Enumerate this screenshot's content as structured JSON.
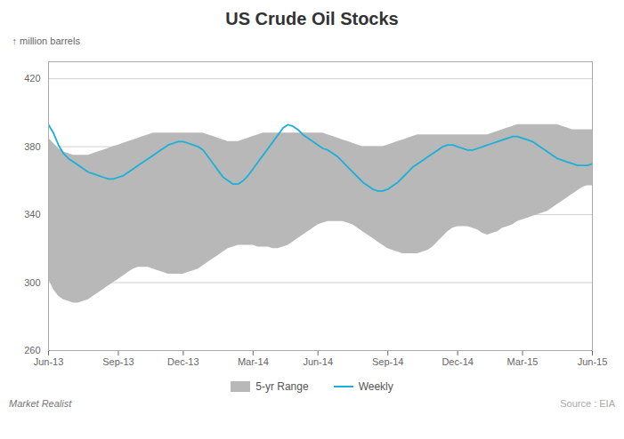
{
  "chart_data": {
    "type": "line",
    "title": "US Crude Oil Stocks",
    "y_label": "million barrels",
    "categories": [
      "Jun-13",
      null,
      null,
      null,
      null,
      null,
      null,
      null,
      null,
      null,
      null,
      null,
      null,
      null,
      "Sep-13",
      null,
      null,
      null,
      null,
      null,
      null,
      null,
      null,
      null,
      null,
      null,
      null,
      "Dec-13",
      null,
      null,
      null,
      null,
      null,
      null,
      null,
      null,
      null,
      null,
      null,
      null,
      null,
      "Mar-14",
      null,
      null,
      null,
      null,
      null,
      null,
      null,
      null,
      null,
      null,
      null,
      null,
      "Jun-14",
      null,
      null,
      null,
      null,
      null,
      null,
      null,
      null,
      null,
      null,
      null,
      null,
      null,
      "Sep-14",
      null,
      null,
      null,
      null,
      null,
      null,
      null,
      null,
      null,
      null,
      null,
      null,
      null,
      "Dec-14",
      null,
      null,
      null,
      null,
      null,
      null,
      null,
      null,
      null,
      null,
      null,
      null,
      "Mar-15",
      null,
      null,
      null,
      null,
      null,
      null,
      null,
      null,
      null,
      null,
      null,
      null,
      null,
      "Jun-15"
    ],
    "series": [
      {
        "name": "5-yr Range",
        "type": "area",
        "color": "#b8b8b8",
        "upper": [
          385,
          382,
          379,
          377,
          376,
          375,
          375,
          375,
          375,
          376,
          377,
          378,
          379,
          380,
          381,
          382,
          383,
          384,
          385,
          386,
          387,
          388,
          388,
          388,
          388,
          388,
          388,
          388,
          388,
          388,
          388,
          388,
          387,
          386,
          385,
          384,
          383,
          383,
          383,
          384,
          385,
          386,
          387,
          388,
          388,
          388,
          388,
          388,
          388,
          388,
          388,
          388,
          388,
          388,
          388,
          388,
          387,
          386,
          385,
          384,
          383,
          382,
          381,
          380,
          380,
          380,
          380,
          380,
          381,
          382,
          383,
          384,
          385,
          386,
          387,
          387,
          387,
          387,
          387,
          387,
          387,
          387,
          387,
          387,
          387,
          387,
          387,
          387,
          387,
          388,
          389,
          390,
          391,
          392,
          393,
          393,
          393,
          393,
          393,
          393,
          393,
          393,
          393,
          392,
          391,
          390,
          390,
          390,
          390,
          390
        ],
        "lower": [
          302,
          296,
          292,
          290,
          289,
          288,
          288,
          289,
          290,
          292,
          294,
          296,
          298,
          300,
          302,
          304,
          306,
          308,
          309,
          309,
          309,
          308,
          307,
          306,
          305,
          305,
          305,
          305,
          306,
          307,
          308,
          310,
          312,
          314,
          316,
          318,
          320,
          321,
          322,
          322,
          322,
          322,
          321,
          321,
          321,
          320,
          320,
          321,
          322,
          324,
          326,
          328,
          330,
          332,
          334,
          335,
          336,
          336,
          336,
          336,
          335,
          334,
          332,
          330,
          328,
          326,
          324,
          322,
          320,
          319,
          318,
          317,
          317,
          317,
          317,
          318,
          319,
          321,
          324,
          327,
          330,
          332,
          333,
          333,
          333,
          332,
          331,
          329,
          328,
          329,
          330,
          332,
          333,
          334,
          336,
          337,
          338,
          339,
          340,
          341,
          342,
          344,
          346,
          348,
          350,
          352,
          354,
          356,
          357,
          357
        ]
      },
      {
        "name": "Weekly",
        "type": "line",
        "color": "#1ab0d8",
        "values": [
          393,
          388,
          381,
          376,
          373,
          371,
          369,
          367,
          365,
          364,
          363,
          362,
          361,
          361,
          362,
          363,
          365,
          367,
          369,
          371,
          373,
          375,
          377,
          379,
          381,
          382,
          383,
          383,
          382,
          381,
          380,
          378,
          374,
          370,
          366,
          362,
          360,
          358,
          358,
          360,
          363,
          367,
          371,
          375,
          379,
          383,
          387,
          391,
          393,
          392,
          390,
          387,
          385,
          383,
          381,
          379,
          378,
          376,
          374,
          371,
          368,
          365,
          362,
          359,
          357,
          355,
          354,
          354,
          355,
          357,
          359,
          362,
          365,
          368,
          370,
          372,
          374,
          376,
          378,
          380,
          381,
          381,
          380,
          379,
          378,
          378,
          379,
          380,
          381,
          382,
          383,
          384,
          385,
          386,
          386,
          385,
          384,
          383,
          381,
          379,
          377,
          375,
          373,
          372,
          371,
          370,
          369,
          369,
          369,
          370
        ]
      }
    ],
    "ylim": [
      260,
      430
    ],
    "yticks": [
      260,
      300,
      340,
      380,
      420
    ],
    "grid": "y",
    "legend": "lower center",
    "annotations": [
      "Market Realist",
      "Source : EIA"
    ]
  }
}
